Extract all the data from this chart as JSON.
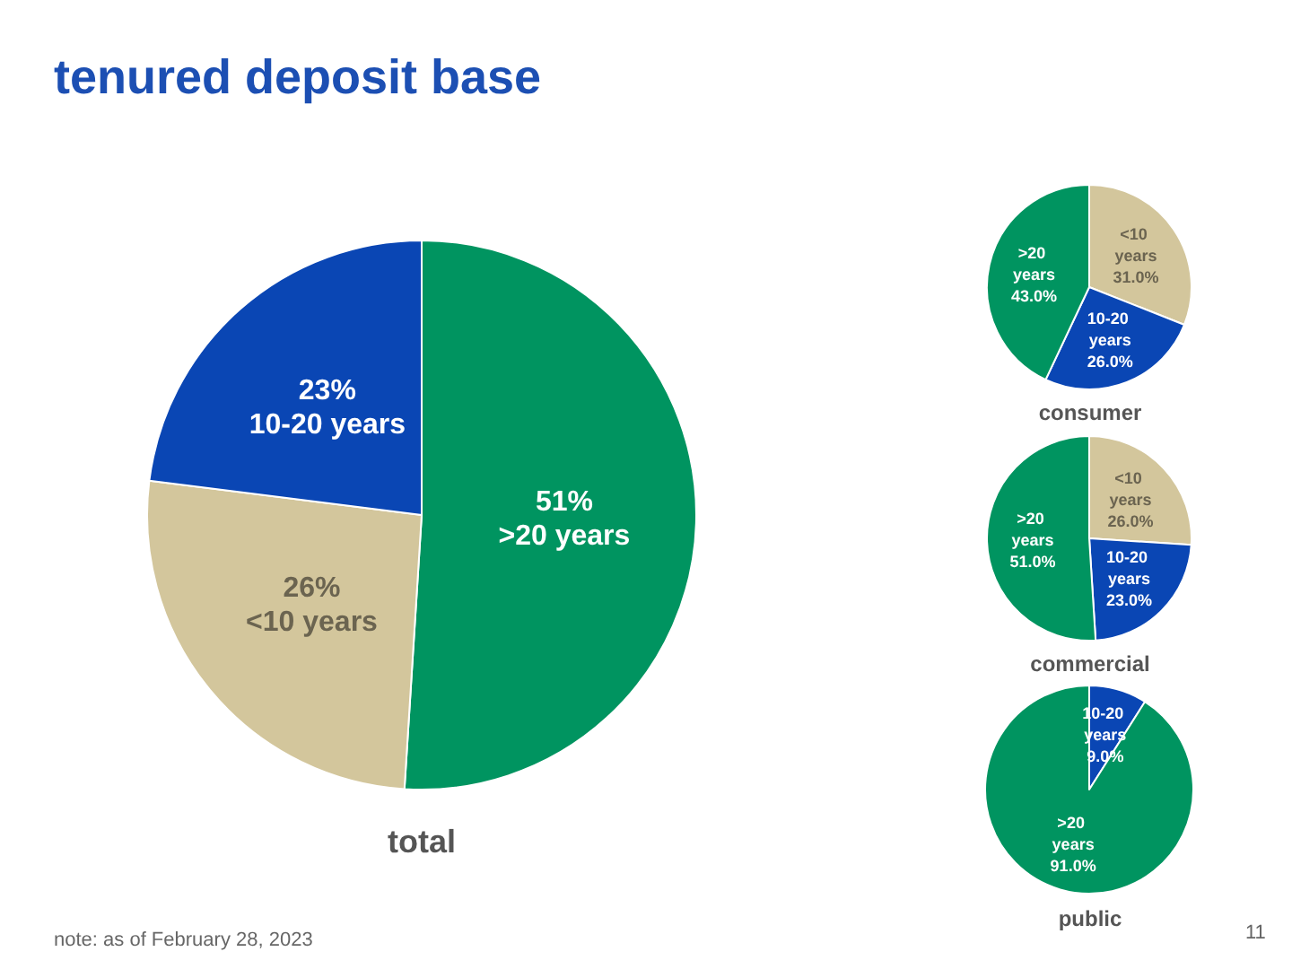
{
  "chart_data": [
    {
      "type": "pie",
      "title": "total",
      "categories": [
        ">20 years",
        "<10 years",
        "10-20 years"
      ],
      "values": [
        51,
        26,
        23
      ],
      "colors": [
        "#009460",
        "#d3c69c",
        "#0a46b4"
      ],
      "value_labels": [
        "51%",
        "26%",
        "23%"
      ],
      "annotations": [
        "tenured deposit base",
        "note: as of February 28, 2023",
        "11"
      ]
    },
    {
      "type": "pie",
      "title": "consumer",
      "categories": [
        "<10 years",
        "10-20 years",
        ">20 years"
      ],
      "values": [
        31.0,
        26.0,
        43.0
      ],
      "colors": [
        "#d3c69c",
        "#0a46b4",
        "#009460"
      ],
      "value_labels": [
        "31.0%",
        "26.0%",
        "43.0%"
      ]
    },
    {
      "type": "pie",
      "title": "commercial",
      "categories": [
        "<10 years",
        "10-20 years",
        ">20 years"
      ],
      "values": [
        26.0,
        23.0,
        51.0
      ],
      "colors": [
        "#d3c69c",
        "#0a46b4",
        "#009460"
      ],
      "value_labels": [
        "26.0%",
        "23.0%",
        "51.0%"
      ]
    },
    {
      "type": "pie",
      "title": "public",
      "categories": [
        "10-20 years",
        ">20 years"
      ],
      "values": [
        9.0,
        91.0
      ],
      "colors": [
        "#0a46b4",
        "#009460"
      ],
      "value_labels": [
        "9.0%",
        "91.0%"
      ]
    }
  ]
}
